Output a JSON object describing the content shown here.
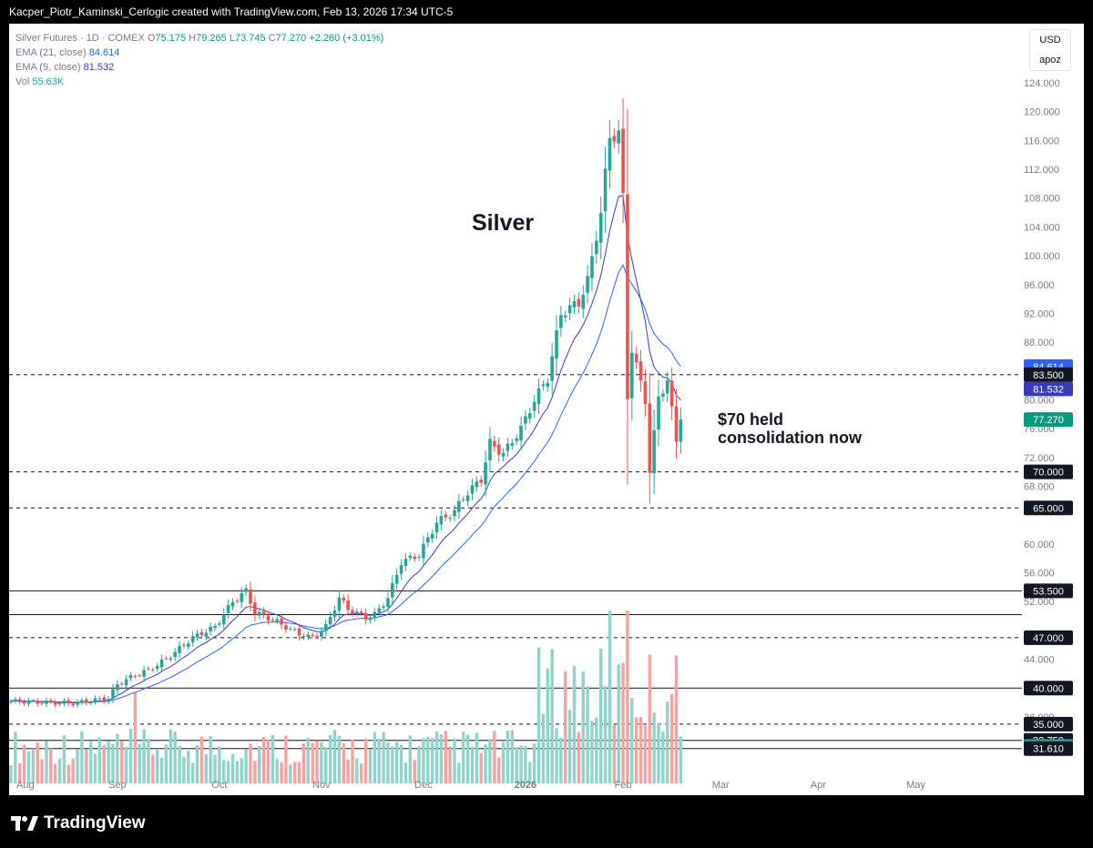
{
  "header_text": "Kacper_Piotr_Kaminski_Cerlogic created with TradingView.com, Feb 13, 2026 17:34 UTC-5",
  "legend": {
    "symbol": "Silver Futures · 1D · COMEX",
    "o_label": "O",
    "o_value": "75.175",
    "h_label": "H",
    "h_value": "79.265",
    "l_label": "L",
    "l_value": "73.745",
    "c_label": "C",
    "c_value": "77.270",
    "change": "+2.260 (+3.01%)",
    "ema21_label": "EMA (21, close)",
    "ema21_value": "84.614",
    "ema9_label": "EMA (9, close)",
    "ema9_value": "81.532",
    "vol_label": "Vol",
    "vol_value": "55.63K"
  },
  "scale_buttons": {
    "currency": "USD",
    "mode": "apoz"
  },
  "annotations": {
    "title": "Silver",
    "note_line1": "$70 held",
    "note_line2": "consolidation now"
  },
  "footer": {
    "brand": "TradingView"
  },
  "colors": {
    "up": "#26a69a",
    "down": "#ef5350",
    "ema21": "#2962ff",
    "ema9": "#3a3ab8",
    "vol_up": "#8fd3cb",
    "vol_down": "#f5a3a1"
  },
  "chart_data": {
    "type": "candlestick",
    "y_axis_ticks": [
      "124.000",
      "120.000",
      "116.000",
      "112.000",
      "108.000",
      "104.000",
      "100.000",
      "96.000",
      "92.000",
      "88.000",
      "80.000",
      "76.000",
      "72.000",
      "68.000",
      "60.000",
      "56.000",
      "52.000",
      "44.000",
      "36.000"
    ],
    "x_axis_labels": [
      "Aug",
      "Sep",
      "Oct",
      "Nov",
      "Dec",
      "2026",
      "Feb",
      "Mar",
      "Apr",
      "May"
    ],
    "price_tags": [
      {
        "label": "84.614",
        "value": 84.614,
        "color": "#2962ff"
      },
      {
        "label": "83.500",
        "value": 83.5,
        "color": "#131722"
      },
      {
        "label": "81.532",
        "value": 81.532,
        "color": "#3a3ab8"
      },
      {
        "label": "77.270",
        "value": 77.27,
        "color": "#089981"
      },
      {
        "label": "70.000",
        "value": 70,
        "color": "#131722"
      },
      {
        "label": "65.000",
        "value": 65,
        "color": "#131722"
      },
      {
        "label": "53.500",
        "value": 53.5,
        "color": "#131722"
      },
      {
        "label": "47.000",
        "value": 47,
        "color": "#131722"
      },
      {
        "label": "40.000",
        "value": 40,
        "color": "#131722"
      },
      {
        "label": "35.000",
        "value": 35,
        "color": "#131722"
      },
      {
        "label": "32.750",
        "value": 32.75,
        "color": "#131722"
      },
      {
        "label": "55.63K",
        "value": 31.9,
        "color": "#26a69a"
      },
      {
        "label": "31.610",
        "value": 31.61,
        "color": "#131722"
      }
    ],
    "horizontal_levels": [
      {
        "value": 83.5,
        "style": "dashed"
      },
      {
        "value": 70,
        "style": "dashed"
      },
      {
        "value": 65,
        "style": "dashed"
      },
      {
        "value": 53.5,
        "style": "solid"
      },
      {
        "value": 50.2,
        "style": "solid"
      },
      {
        "value": 47,
        "style": "dashed"
      },
      {
        "value": 40,
        "style": "solid"
      },
      {
        "value": 35,
        "style": "dashed"
      },
      {
        "value": 32.75,
        "style": "solid"
      },
      {
        "value": 31.61,
        "style": "solid"
      }
    ],
    "price_anchors": [
      [
        0,
        38.2
      ],
      [
        8,
        38.0
      ],
      [
        14,
        37.9
      ],
      [
        22,
        38.6
      ],
      [
        24,
        40.5
      ],
      [
        27,
        41.5
      ],
      [
        32,
        42.8
      ],
      [
        36,
        44.5
      ],
      [
        41,
        47.0
      ],
      [
        46,
        48.5
      ],
      [
        50,
        52.0
      ],
      [
        53,
        53.5
      ],
      [
        55,
        50.5
      ],
      [
        59,
        49.5
      ],
      [
        62,
        48.5
      ],
      [
        65,
        47.5
      ],
      [
        68,
        47.0
      ],
      [
        71,
        48.5
      ],
      [
        74,
        52.5
      ],
      [
        76,
        51.0
      ],
      [
        80,
        49.8
      ],
      [
        82,
        50.2
      ],
      [
        85,
        52.5
      ],
      [
        88,
        57.5
      ],
      [
        92,
        58.5
      ],
      [
        96,
        63.0
      ],
      [
        100,
        64.5
      ],
      [
        102,
        66.5
      ],
      [
        106,
        69.0
      ],
      [
        108,
        74.0
      ],
      [
        111,
        72.5
      ],
      [
        115,
        76.0
      ],
      [
        118,
        80.0
      ],
      [
        121,
        83.0
      ],
      [
        124,
        92.0
      ],
      [
        128,
        93.5
      ],
      [
        130,
        96.5
      ],
      [
        133,
        106.0
      ],
      [
        135,
        116.5
      ],
      [
        137,
        117.0
      ],
      [
        138,
        108.0
      ],
      [
        139,
        80.5
      ],
      [
        140,
        87.0
      ],
      [
        143,
        80.0
      ],
      [
        144,
        70.0
      ],
      [
        146,
        80.5
      ],
      [
        148,
        82.5
      ],
      [
        150,
        74.5
      ],
      [
        151,
        77.27
      ]
    ],
    "ema21_last": 84.614,
    "ema9_last": 81.532,
    "volume_last": "55.63K"
  }
}
